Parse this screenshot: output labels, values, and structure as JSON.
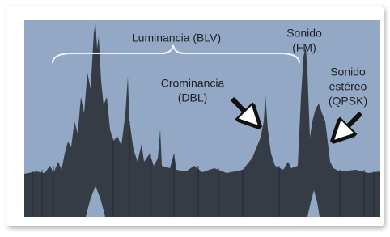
{
  "labels": {
    "luminance": "Luminancia (BLV)",
    "sound_fm": [
      "Sonido",
      "(FM)"
    ],
    "chrominance": [
      "Crominancia",
      "(DBL)"
    ],
    "sound_stereo": [
      "Sonido",
      "estéreo",
      "(QPSK)"
    ]
  }
}
